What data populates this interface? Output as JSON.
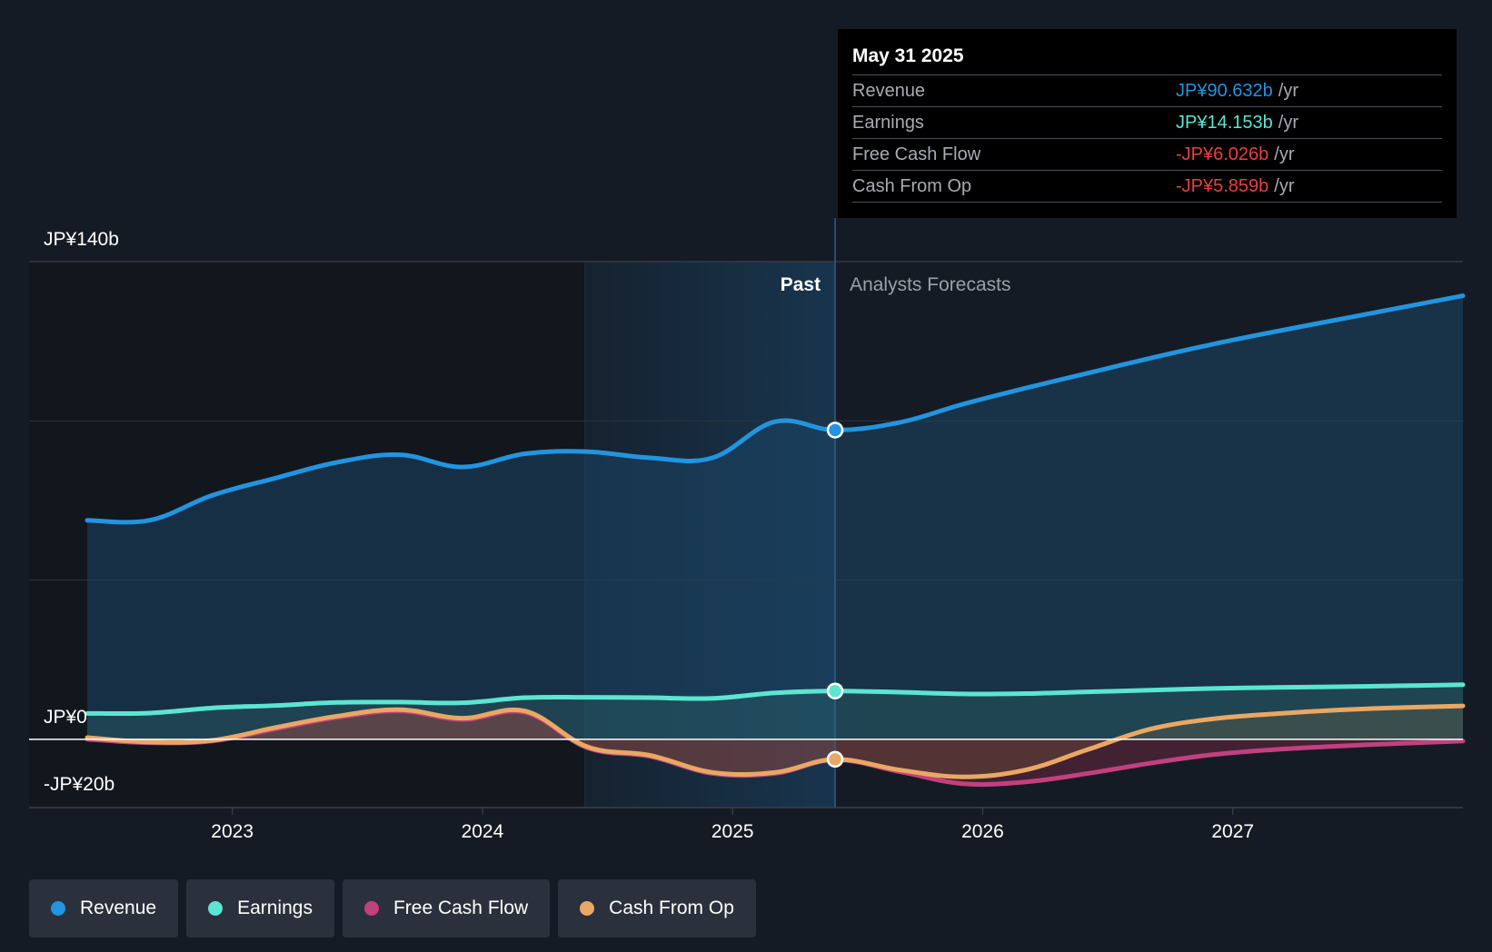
{
  "chart_data": {
    "type": "area",
    "title": "",
    "y_axis": {
      "ylim": [
        -20,
        140
      ],
      "tick_labels": [
        "JP¥140b",
        "JP¥0",
        "-JP¥20b"
      ],
      "tick_values": [
        140,
        0,
        -20
      ]
    },
    "x_axis": {
      "ticks": [
        2023,
        2024,
        2025,
        2026,
        2027
      ],
      "tick_labels": [
        "2023",
        "2024",
        "2025",
        "2026",
        "2027"
      ],
      "xlim": [
        2022.42,
        2027.92
      ]
    },
    "regions": {
      "past_label": "Past",
      "forecast_label": "Analysts Forecasts",
      "divider_x": 2025.41,
      "highlight_start_x": 2024.41
    },
    "series": [
      {
        "name": "Revenue",
        "color": "#2394df",
        "x": [
          2022.42,
          2022.67,
          2022.92,
          2023.17,
          2023.42,
          2023.67,
          2023.92,
          2024.17,
          2024.42,
          2024.67,
          2024.92,
          2025.17,
          2025.41,
          2025.67,
          2025.92,
          2026.17,
          2026.42,
          2026.67,
          2026.92,
          2027.17,
          2027.42,
          2027.67,
          2027.92
        ],
        "values": [
          64.2,
          64.2,
          71.5,
          76.5,
          81.2,
          83.4,
          79.8,
          83.7,
          84.3,
          82.5,
          82.5,
          93.1,
          90.632,
          92.9,
          98.2,
          102.9,
          107.3,
          111.7,
          115.8,
          119.5,
          123.0,
          126.5,
          130.0
        ]
      },
      {
        "name": "Earnings",
        "color": "#5ce5d1",
        "x": [
          2022.42,
          2022.67,
          2022.92,
          2023.17,
          2023.42,
          2023.67,
          2023.92,
          2024.17,
          2024.42,
          2024.67,
          2024.92,
          2025.17,
          2025.41,
          2025.67,
          2025.92,
          2026.17,
          2026.42,
          2026.67,
          2026.92,
          2027.17,
          2027.42,
          2027.67,
          2027.92
        ],
        "values": [
          7.6,
          7.7,
          9.2,
          9.9,
          10.8,
          10.9,
          10.7,
          12.2,
          12.3,
          12.2,
          12.0,
          13.6,
          14.153,
          13.8,
          13.3,
          13.4,
          13.9,
          14.4,
          14.9,
          15.2,
          15.4,
          15.7,
          16.0
        ]
      },
      {
        "name": "Free Cash Flow",
        "color": "#c3407f",
        "x": [
          2022.42,
          2022.67,
          2022.92,
          2023.17,
          2023.42,
          2023.67,
          2023.92,
          2024.17,
          2024.42,
          2024.67,
          2024.92,
          2025.17,
          2025.41,
          2025.67,
          2025.92,
          2026.17,
          2026.42,
          2026.67,
          2026.92,
          2027.17,
          2027.42,
          2027.67,
          2027.92
        ],
        "values": [
          0.0,
          -1.0,
          -0.5,
          3.0,
          6.4,
          8.3,
          5.8,
          7.9,
          -2.5,
          -5.0,
          -10.0,
          -10.0,
          -6.026,
          -9.5,
          -13.0,
          -12.5,
          -10.0,
          -7.0,
          -4.5,
          -3.0,
          -2.0,
          -1.2,
          -0.5
        ]
      },
      {
        "name": "Cash From Op",
        "color": "#e9a863",
        "x": [
          2022.42,
          2022.67,
          2022.92,
          2023.17,
          2023.42,
          2023.67,
          2023.92,
          2024.17,
          2024.42,
          2024.67,
          2024.92,
          2025.17,
          2025.41,
          2025.67,
          2025.92,
          2026.17,
          2026.42,
          2026.67,
          2026.92,
          2027.17,
          2027.42,
          2027.67,
          2027.92
        ],
        "values": [
          0.5,
          -0.8,
          -0.3,
          3.4,
          6.8,
          8.7,
          6.2,
          8.3,
          -2.2,
          -4.7,
          -9.7,
          -9.7,
          -5.859,
          -9.0,
          -11.0,
          -9.0,
          -3.0,
          3.0,
          6.0,
          7.5,
          8.6,
          9.3,
          9.8
        ]
      }
    ],
    "highlight_x": 2025.41
  },
  "tooltip": {
    "date": "May 31 2025",
    "rows": [
      {
        "label": "Revenue",
        "value": "JP¥90.632b",
        "unit": "/yr",
        "color": "#2394df"
      },
      {
        "label": "Earnings",
        "value": "JP¥14.153b",
        "unit": "/yr",
        "color": "#5ce5d1"
      },
      {
        "label": "Free Cash Flow",
        "value": "-JP¥6.026b",
        "unit": "/yr",
        "color": "#e8403f"
      },
      {
        "label": "Cash From Op",
        "value": "-JP¥5.859b",
        "unit": "/yr",
        "color": "#e8403f"
      }
    ]
  },
  "legend": [
    {
      "label": "Revenue",
      "color": "#2394df"
    },
    {
      "label": "Earnings",
      "color": "#5ce5d1"
    },
    {
      "label": "Free Cash Flow",
      "color": "#c3407f"
    },
    {
      "label": "Cash From Op",
      "color": "#e9a863"
    }
  ]
}
